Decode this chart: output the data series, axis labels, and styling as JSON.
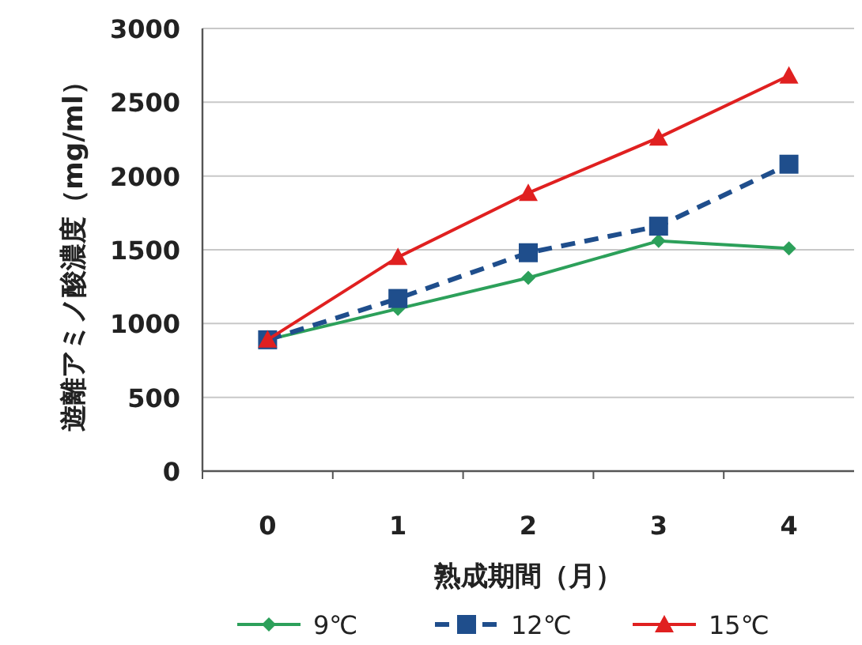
{
  "chart_data": {
    "type": "line",
    "xlabel": "熟成期間（月）",
    "ylabel": "遊離アミノ酸濃度（mg/ml）",
    "categories": [
      "0",
      "1",
      "2",
      "3",
      "4"
    ],
    "series": [
      {
        "name": "9℃",
        "color": "#2ca05a",
        "marker": "diamond",
        "line_style": "solid",
        "values": [
          890,
          1100,
          1310,
          1560,
          1510
        ]
      },
      {
        "name": "12℃",
        "color": "#1f4e8c",
        "marker": "square",
        "line_style": "dashed",
        "values": [
          890,
          1170,
          1480,
          1660,
          2080
        ]
      },
      {
        "name": "15℃",
        "color": "#e02020",
        "marker": "triangle",
        "line_style": "solid",
        "values": [
          890,
          1450,
          1885,
          2260,
          2680
        ]
      }
    ],
    "ylim": [
      0,
      3000
    ],
    "yticks": [
      0,
      500,
      1000,
      1500,
      2000,
      2500,
      3000
    ],
    "grid": "y",
    "legend": "bottom"
  }
}
